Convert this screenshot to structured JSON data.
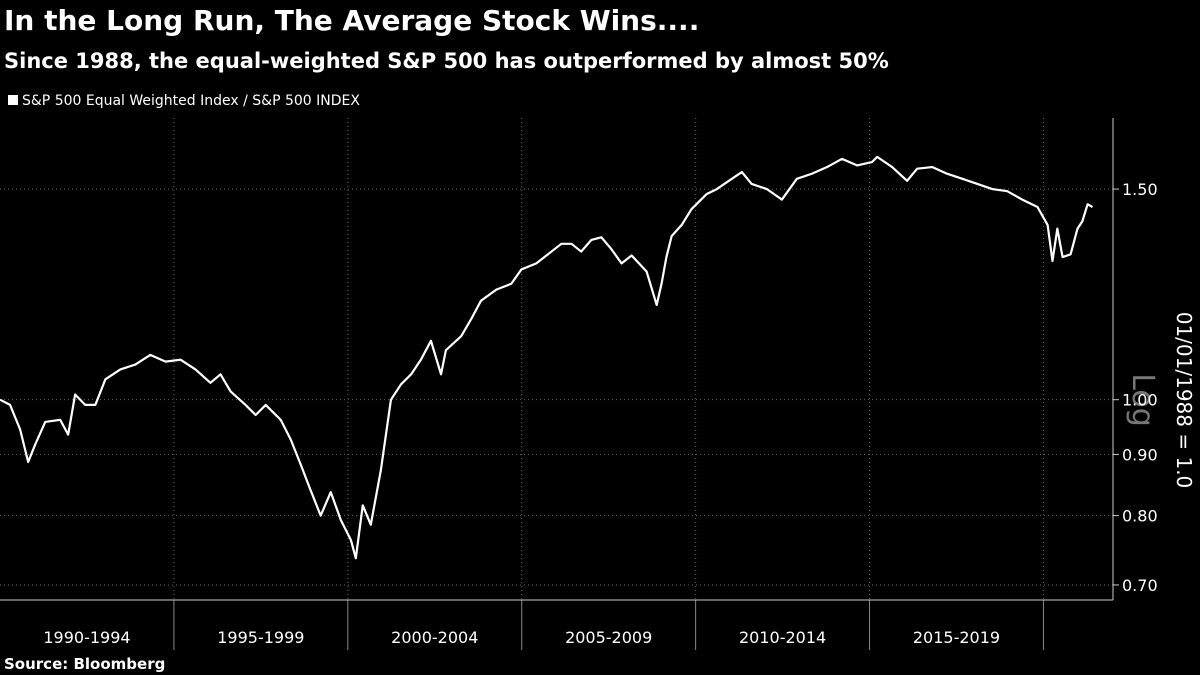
{
  "chart_data": {
    "type": "line",
    "title": "In the Long Run, The Average Stock Wins....",
    "subtitle": "Since 1988, the equal-weighted S&P 500 has outperformed by almost 50%",
    "source": "Source: Bloomberg",
    "y_label": "01/01/1988 = 1.0",
    "y_scale_label": "Log",
    "yscale": "log",
    "grid": true,
    "background": "#000000",
    "x": [
      1990.0,
      1990.29,
      1990.58,
      1990.81,
      1991.01,
      1991.3,
      1991.73,
      1991.96,
      1992.16,
      1992.45,
      1992.74,
      1993.03,
      1993.46,
      1993.89,
      1994.32,
      1994.76,
      1995.19,
      1995.62,
      1996.05,
      1996.34,
      1996.63,
      1997.06,
      1997.35,
      1997.64,
      1998.07,
      1998.36,
      1998.65,
      1998.93,
      1999.22,
      1999.51,
      1999.8,
      2000.09,
      2000.23,
      2000.43,
      2000.66,
      2000.95,
      2001.24,
      2001.53,
      2001.82,
      2002.1,
      2002.39,
      2002.68,
      2002.82,
      2003.26,
      2003.54,
      2003.83,
      2004.27,
      2004.7,
      2004.99,
      2005.42,
      2005.71,
      2006.14,
      2006.43,
      2006.71,
      2007.0,
      2007.29,
      2007.58,
      2007.87,
      2008.16,
      2008.59,
      2008.88,
      2009.02,
      2009.16,
      2009.31,
      2009.6,
      2009.88,
      2010.32,
      2010.61,
      2011.04,
      2011.33,
      2011.61,
      2012.05,
      2012.48,
      2012.91,
      2013.34,
      2013.78,
      2014.21,
      2014.64,
      2015.07,
      2015.22,
      2015.65,
      2016.08,
      2016.37,
      2016.8,
      2017.23,
      2017.67,
      2018.1,
      2018.53,
      2018.96,
      2019.39,
      2019.83,
      2020.12,
      2020.26,
      2020.4,
      2020.55,
      2020.78,
      2020.98,
      2021.12,
      2021.27,
      2021.41
    ],
    "series": [
      {
        "name": "S&P 500 Equal Weighted Index / S&P 500 INDEX",
        "color": "#ffffff",
        "values": [
          1.0,
          0.99,
          0.944,
          0.887,
          0.917,
          0.958,
          0.962,
          0.935,
          1.01,
          0.99,
          0.99,
          1.04,
          1.06,
          1.07,
          1.09,
          1.076,
          1.08,
          1.06,
          1.033,
          1.05,
          1.016,
          0.99,
          0.971,
          0.99,
          0.962,
          0.926,
          0.882,
          0.84,
          0.8,
          0.837,
          0.793,
          0.763,
          0.737,
          0.816,
          0.786,
          0.873,
          1.0,
          1.03,
          1.05,
          1.08,
          1.12,
          1.05,
          1.1,
          1.13,
          1.167,
          1.21,
          1.236,
          1.25,
          1.285,
          1.3,
          1.32,
          1.35,
          1.35,
          1.33,
          1.36,
          1.367,
          1.336,
          1.3,
          1.32,
          1.28,
          1.2,
          1.25,
          1.316,
          1.37,
          1.4,
          1.443,
          1.486,
          1.5,
          1.53,
          1.55,
          1.515,
          1.5,
          1.47,
          1.53,
          1.545,
          1.565,
          1.59,
          1.57,
          1.58,
          1.596,
          1.565,
          1.524,
          1.56,
          1.565,
          1.545,
          1.53,
          1.515,
          1.5,
          1.494,
          1.47,
          1.449,
          1.4,
          1.306,
          1.39,
          1.316,
          1.323,
          1.39,
          1.41,
          1.457,
          1.449
        ]
      }
    ],
    "xlim": [
      1990,
      2022
    ],
    "xticks": [
      1995,
      2000,
      2005,
      2010,
      2015,
      2020
    ],
    "x_periods": [
      {
        "label": "1990-1994",
        "start": 1990,
        "end": 1995
      },
      {
        "label": "1995-1999",
        "start": 1995,
        "end": 2000
      },
      {
        "label": "2000-2004",
        "start": 2000,
        "end": 2005
      },
      {
        "label": "2005-2009",
        "start": 2005,
        "end": 2010
      },
      {
        "label": "2010-2014",
        "start": 2010,
        "end": 2015
      },
      {
        "label": "2015-2019",
        "start": 2015,
        "end": 2020
      }
    ],
    "ylim": [
      0.68,
      1.72
    ],
    "yticks": [
      {
        "value": 0.7,
        "label": "0.70"
      },
      {
        "value": 0.8,
        "label": "0.80"
      },
      {
        "value": 0.9,
        "label": "0.90"
      },
      {
        "value": 1.0,
        "label": "1.00"
      },
      {
        "value": 1.5,
        "label": "1.50"
      }
    ]
  }
}
